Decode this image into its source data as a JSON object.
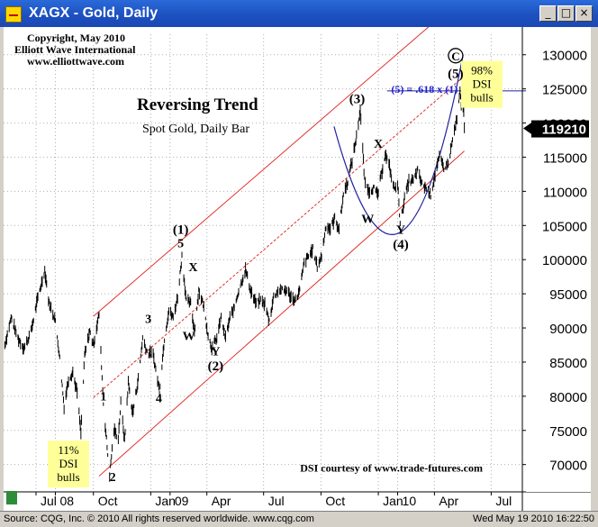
{
  "window": {
    "title": "XAGX - Gold, Daily",
    "buttons": {
      "minimize": "_",
      "maximize": "□",
      "close": "×"
    }
  },
  "copyright": {
    "line1": "Copyright, May 2010",
    "line2": "Elliott Wave International",
    "line3": "www.elliottwave.com"
  },
  "chart_data": {
    "type": "line",
    "title": "Reversing Trend",
    "subtitle": "Spot Gold, Daily Bar",
    "xlabel": "",
    "ylabel": "",
    "ylim": [
      66000,
      133000
    ],
    "yticks": [
      70000,
      75000,
      80000,
      85000,
      90000,
      95000,
      100000,
      105000,
      110000,
      115000,
      120000,
      125000,
      130000
    ],
    "ytick_labels": [
      "70000",
      "75000",
      "80000",
      "85000",
      "90000",
      "95000",
      "100000",
      "105000",
      "110000",
      "115000",
      "120000",
      "125000",
      "130000"
    ],
    "xticks": [
      {
        "label": "Jul",
        "date": "2008-07-01"
      },
      {
        "label": "08",
        "date": "2008-08-01"
      },
      {
        "label": "Oct",
        "date": "2008-10-01"
      },
      {
        "label": "Jan",
        "date": "2009-01-01"
      },
      {
        "label": "09",
        "date": "2009-02-01"
      },
      {
        "label": "Apr",
        "date": "2009-04-01"
      },
      {
        "label": "Jul",
        "date": "2009-07-01"
      },
      {
        "label": "Oct",
        "date": "2009-10-01"
      },
      {
        "label": "Jan",
        "date": "2010-01-01"
      },
      {
        "label": "10",
        "date": "2010-02-01"
      },
      {
        "label": "Apr",
        "date": "2010-04-01"
      },
      {
        "label": "Jul",
        "date": "2010-07-01"
      }
    ],
    "xlim": [
      "2008-05-10",
      "2010-08-20"
    ],
    "last_price": "119210",
    "series": [
      {
        "values": [
          [
            "2008-05-12",
            87500
          ],
          [
            "2008-05-22",
            91500
          ],
          [
            "2008-06-02",
            88500
          ],
          [
            "2008-06-12",
            87000
          ],
          [
            "2008-06-23",
            89500
          ],
          [
            "2008-07-03",
            94000
          ],
          [
            "2008-07-15",
            98500
          ],
          [
            "2008-07-22",
            93500
          ],
          [
            "2008-07-31",
            91500
          ],
          [
            "2008-08-07",
            86500
          ],
          [
            "2008-08-12",
            81500
          ],
          [
            "2008-08-15",
            78500
          ],
          [
            "2008-08-22",
            82500
          ],
          [
            "2008-08-29",
            83500
          ],
          [
            "2008-09-05",
            80500
          ],
          [
            "2008-09-11",
            74500
          ],
          [
            "2008-09-17",
            86000
          ],
          [
            "2008-09-25",
            89500
          ],
          [
            "2008-10-01",
            87500
          ],
          [
            "2008-10-10",
            92000
          ],
          [
            "2008-10-17",
            79000
          ],
          [
            "2008-10-24",
            71500
          ],
          [
            "2008-10-27",
            68500
          ],
          [
            "2008-11-03",
            75000
          ],
          [
            "2008-11-10",
            74000
          ],
          [
            "2008-11-14",
            79000
          ],
          [
            "2008-11-20",
            73500
          ],
          [
            "2008-11-26",
            82000
          ],
          [
            "2008-12-03",
            77500
          ],
          [
            "2008-12-12",
            82500
          ],
          [
            "2008-12-19",
            88500
          ],
          [
            "2008-12-26",
            86500
          ],
          [
            "2009-01-05",
            86000
          ],
          [
            "2009-01-15",
            80800
          ],
          [
            "2009-01-23",
            88500
          ],
          [
            "2009-01-30",
            92500
          ],
          [
            "2009-02-06",
            91500
          ],
          [
            "2009-02-13",
            94500
          ],
          [
            "2009-02-20",
            100500
          ],
          [
            "2009-02-27",
            94000
          ],
          [
            "2009-03-06",
            93500
          ],
          [
            "2009-03-12",
            89500
          ],
          [
            "2009-03-19",
            95500
          ],
          [
            "2009-03-26",
            93500
          ],
          [
            "2009-04-03",
            89000
          ],
          [
            "2009-04-09",
            87000
          ],
          [
            "2009-04-17",
            88500
          ],
          [
            "2009-04-24",
            91500
          ],
          [
            "2009-05-01",
            88500
          ],
          [
            "2009-05-08",
            91500
          ],
          [
            "2009-05-15",
            93000
          ],
          [
            "2009-05-22",
            95500
          ],
          [
            "2009-06-02",
            98500
          ],
          [
            "2009-06-10",
            95500
          ],
          [
            "2009-06-19",
            93500
          ],
          [
            "2009-06-26",
            94000
          ],
          [
            "2009-07-03",
            93500
          ],
          [
            "2009-07-10",
            91000
          ],
          [
            "2009-07-17",
            94500
          ],
          [
            "2009-07-24",
            95500
          ],
          [
            "2009-07-31",
            95500
          ],
          [
            "2009-08-07",
            95500
          ],
          [
            "2009-08-14",
            94500
          ],
          [
            "2009-08-21",
            94000
          ],
          [
            "2009-08-28",
            95500
          ],
          [
            "2009-09-04",
            99500
          ],
          [
            "2009-09-11",
            100500
          ],
          [
            "2009-09-18",
            101500
          ],
          [
            "2009-09-25",
            99000
          ],
          [
            "2009-10-02",
            100500
          ],
          [
            "2009-10-09",
            105000
          ],
          [
            "2009-10-16",
            104500
          ],
          [
            "2009-10-23",
            106000
          ],
          [
            "2009-10-30",
            104500
          ],
          [
            "2009-11-06",
            109500
          ],
          [
            "2009-11-13",
            111500
          ],
          [
            "2009-11-20",
            114500
          ],
          [
            "2009-11-27",
            118000
          ],
          [
            "2009-12-03",
            122000
          ],
          [
            "2009-12-10",
            111500
          ],
          [
            "2009-12-17",
            110000
          ],
          [
            "2009-12-24",
            110500
          ],
          [
            "2009-12-31",
            109500
          ],
          [
            "2010-01-08",
            113500
          ],
          [
            "2010-01-12",
            115500
          ],
          [
            "2010-01-19",
            113500
          ],
          [
            "2010-01-26",
            110500
          ],
          [
            "2010-02-02",
            110500
          ],
          [
            "2010-02-05",
            105000
          ],
          [
            "2010-02-12",
            109000
          ],
          [
            "2010-02-19",
            111500
          ],
          [
            "2010-02-26",
            111500
          ],
          [
            "2010-03-05",
            113000
          ],
          [
            "2010-03-12",
            111000
          ],
          [
            "2010-03-19",
            110500
          ],
          [
            "2010-03-26",
            109500
          ],
          [
            "2010-04-02",
            112500
          ],
          [
            "2010-04-09",
            115000
          ],
          [
            "2010-04-16",
            113500
          ],
          [
            "2010-04-23",
            114000
          ],
          [
            "2010-04-30",
            117500
          ],
          [
            "2010-05-07",
            120500
          ],
          [
            "2010-05-12",
            124500
          ],
          [
            "2010-05-14",
            122500
          ],
          [
            "2010-05-18",
            122000
          ],
          [
            "2010-05-19",
            119210
          ]
        ]
      }
    ],
    "channel_lines": [
      {
        "style": "solid",
        "from": [
          "2008-10-01",
          91700
        ],
        "to": [
          "2010-05-19",
          138600
        ]
      },
      {
        "style": "dashed",
        "from": [
          "2008-10-01",
          79800
        ],
        "to": [
          "2010-05-19",
          126900
        ]
      },
      {
        "style": "solid",
        "from": [
          "2008-10-10",
          68300
        ],
        "to": [
          "2010-05-19",
          115900
        ]
      }
    ],
    "arc": {
      "from": [
        "2009-10-22",
        119500
      ],
      "via": [
        "2010-02-05",
        104000
      ],
      "to": [
        "2010-05-17",
        130000
      ]
    },
    "target_line": {
      "y": 124700,
      "from": "2010-01-15",
      "to": "2010-08-20"
    },
    "labels": [
      {
        "text": "(1)",
        "x": "2009-02-18",
        "y": 103800,
        "style": "wave-major"
      },
      {
        "text": "5",
        "x": "2009-02-18",
        "y": 101800,
        "style": "wave-minor"
      },
      {
        "text": "X",
        "x": "2009-03-10",
        "y": 98300,
        "style": "wave-minor"
      },
      {
        "text": "W",
        "x": "2009-03-03",
        "y": 88200,
        "style": "wave-minor"
      },
      {
        "text": "Y",
        "x": "2009-04-15",
        "y": 86000,
        "style": "wave-minor"
      },
      {
        "text": "(2)",
        "x": "2009-04-15",
        "y": 83800,
        "style": "wave-major"
      },
      {
        "text": "3",
        "x": "2008-12-28",
        "y": 90700,
        "style": "wave-minor"
      },
      {
        "text": "4",
        "x": "2009-01-14",
        "y": 79100,
        "style": "wave-minor"
      },
      {
        "text": "1",
        "x": "2008-10-17",
        "y": 79400,
        "style": "wave-minor"
      },
      {
        "text": "2",
        "x": "2008-11-01",
        "y": 67600,
        "style": "wave-minor"
      },
      {
        "text": "(3)",
        "x": "2009-11-28",
        "y": 122900,
        "style": "wave-major"
      },
      {
        "text": "X",
        "x": "2010-01-01",
        "y": 116400,
        "style": "wave-minor"
      },
      {
        "text": "W",
        "x": "2009-12-15",
        "y": 105400,
        "style": "wave-minor"
      },
      {
        "text": "Y",
        "x": "2010-02-06",
        "y": 103800,
        "style": "wave-minor"
      },
      {
        "text": "(4)",
        "x": "2010-02-06",
        "y": 101600,
        "style": "wave-major"
      },
      {
        "text": "(5)",
        "x": "2010-05-05",
        "y": 126600,
        "style": "wave-major"
      },
      {
        "text": "C",
        "x": "2010-05-05",
        "y": 129200,
        "style": "wave-circled"
      },
      {
        "text": "(5) = .618 x (1)",
        "x": "2010-03-16",
        "y": 124400,
        "style": "annotation-blue"
      },
      {
        "text": "DSI courtesy of  www.trade-futures.com",
        "x": "2010-01-22",
        "y": 69000,
        "style": "credit"
      }
    ],
    "callouts": [
      {
        "lines": [
          "11%",
          "DSI",
          "bulls"
        ],
        "x": "2008-08-22",
        "y": 70200
      },
      {
        "lines": [
          "98%",
          "DSI",
          "bulls"
        ],
        "x": "2010-06-16",
        "y": 125800
      }
    ]
  },
  "statusbar": {
    "left": "Source: CQG, Inc. © 2010 All rights reserved worldwide. www.cqg.com",
    "right": "Wed May 19 2010 16:22:50"
  }
}
